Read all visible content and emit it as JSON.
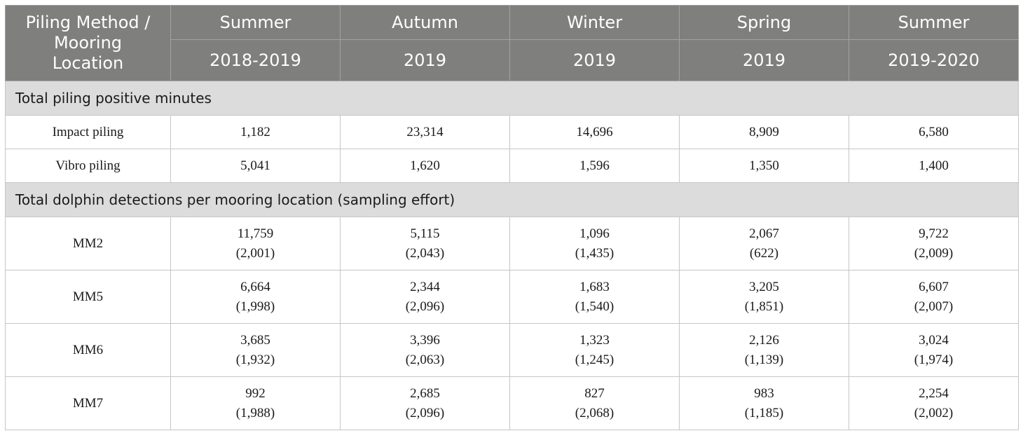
{
  "header": {
    "corner": [
      "Piling Method /",
      "Mooring",
      "Location"
    ],
    "seasons": [
      "Summer",
      "Autumn",
      "Winter",
      "Spring",
      "Summer"
    ],
    "years": [
      "2018-2019",
      "2019",
      "2019",
      "2019",
      "2019-2020"
    ]
  },
  "sections": [
    {
      "title": "Total piling positive minutes",
      "rows": [
        {
          "label": "Impact piling",
          "cells": [
            [
              "1,182"
            ],
            [
              "23,314"
            ],
            [
              "14,696"
            ],
            [
              "8,909"
            ],
            [
              "6,580"
            ]
          ]
        },
        {
          "label": "Vibro piling",
          "cells": [
            [
              "5,041"
            ],
            [
              "1,620"
            ],
            [
              "1,596"
            ],
            [
              "1,350"
            ],
            [
              "1,400"
            ]
          ]
        }
      ]
    },
    {
      "title": "Total dolphin detections per mooring location (sampling effort)",
      "rows": [
        {
          "label": "MM2",
          "cells": [
            [
              "11,759",
              "(2,001)"
            ],
            [
              "5,115",
              "(2,043)"
            ],
            [
              "1,096",
              "(1,435)"
            ],
            [
              "2,067",
              "(622)"
            ],
            [
              "9,722",
              "(2,009)"
            ]
          ]
        },
        {
          "label": "MM5",
          "cells": [
            [
              "6,664",
              "(1,998)"
            ],
            [
              "2,344",
              "(2,096)"
            ],
            [
              "1,683",
              "(1,540)"
            ],
            [
              "3,205",
              "(1,851)"
            ],
            [
              "6,607",
              "(2,007)"
            ]
          ]
        },
        {
          "label": "MM6",
          "cells": [
            [
              "3,685",
              "(1,932)"
            ],
            [
              "3,396",
              "(2,063)"
            ],
            [
              "1,323",
              "(1,245)"
            ],
            [
              "2,126",
              "(1,139)"
            ],
            [
              "3,024",
              "(1,974)"
            ]
          ]
        },
        {
          "label": "MM7",
          "cells": [
            [
              "992",
              "(1,988)"
            ],
            [
              "2,685",
              "(2,096)"
            ],
            [
              "827",
              "(2,068)"
            ],
            [
              "983",
              "(1,185)"
            ],
            [
              "2,254",
              "(2,002)"
            ]
          ]
        }
      ]
    }
  ]
}
